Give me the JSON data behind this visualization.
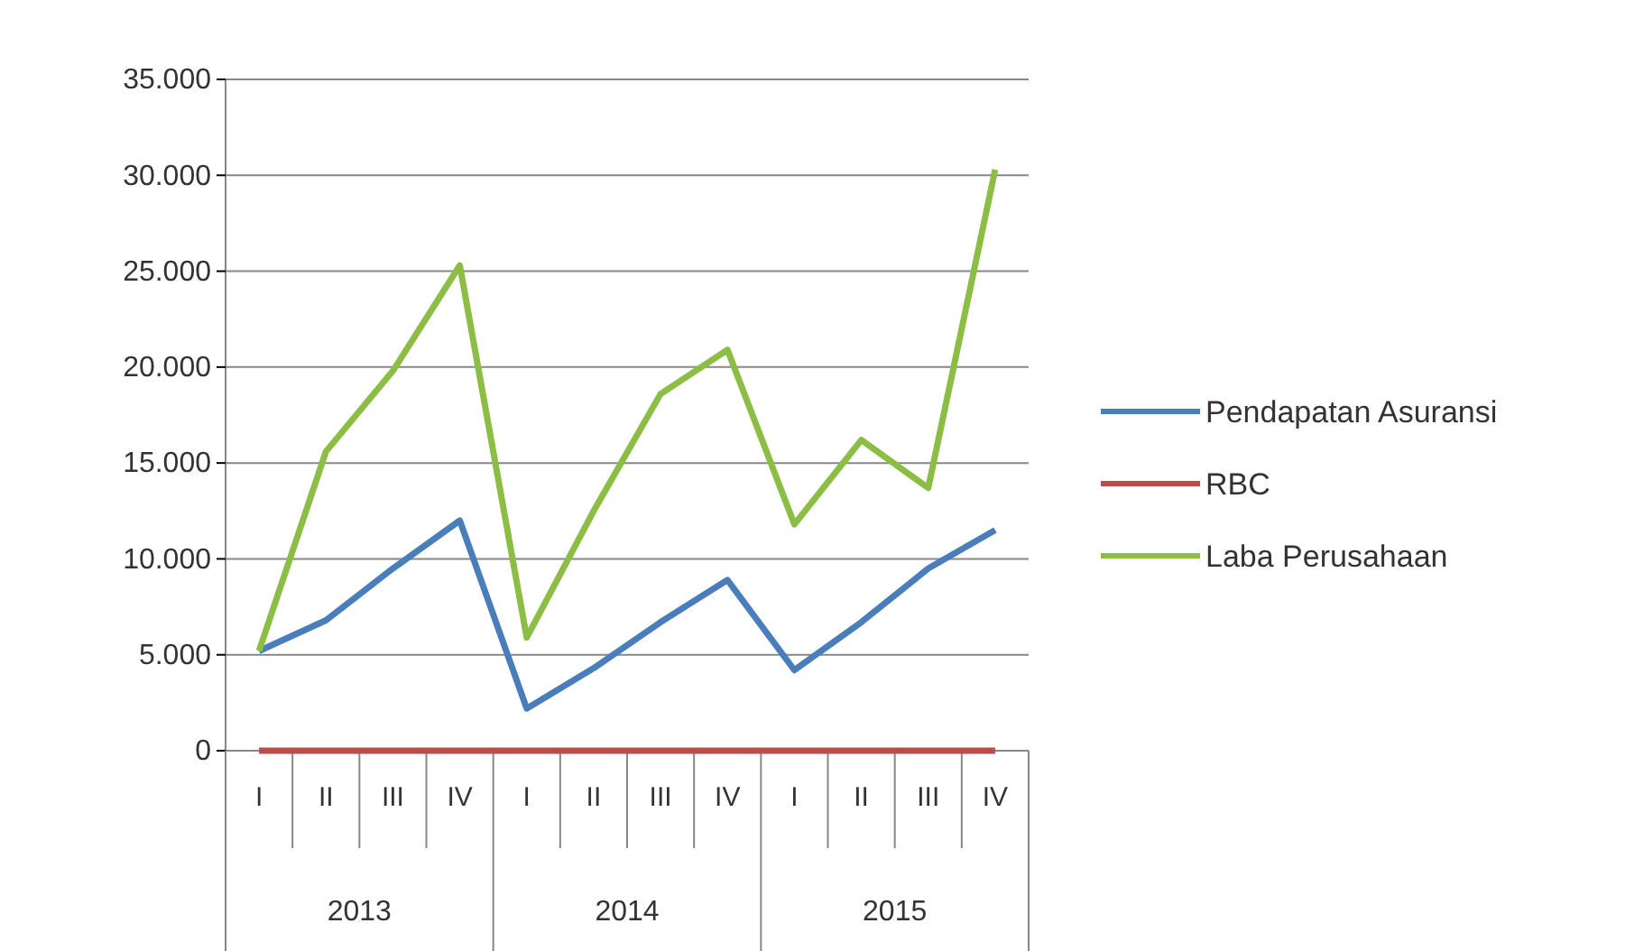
{
  "chart_data": {
    "type": "line",
    "categories": [
      "I",
      "II",
      "III",
      "IV",
      "I",
      "II",
      "III",
      "IV",
      "I",
      "II",
      "III",
      "IV"
    ],
    "series": [
      {
        "name": "Pendapatan Asuransi",
        "color": "#4a7ebb",
        "values": [
          5200,
          6800,
          9500,
          12000,
          2200,
          4300,
          6700,
          8900,
          4200,
          6700,
          9500,
          11500
        ]
      },
      {
        "name": "RBC",
        "color": "#be4b48",
        "values": [
          0,
          0,
          0,
          0,
          0,
          0,
          0,
          0,
          0,
          0,
          0,
          0
        ]
      },
      {
        "name": "Laba Perusahaan",
        "color": "#8cbd44",
        "values": [
          5200,
          15600,
          19800,
          25300,
          5900,
          12500,
          18600,
          20900,
          11800,
          16200,
          13700,
          30300
        ]
      }
    ],
    "ylim": [
      0,
      35000
    ],
    "yticks": [
      0,
      {
        "value": 5000,
        "label": "5.000"
      },
      {
        "value": 10000,
        "label": "10.000"
      },
      {
        "value": 15000,
        "label": "15.000"
      },
      {
        "value": 20000,
        "label": "20.000"
      },
      {
        "value": 25000,
        "label": "25.000"
      },
      {
        "value": 30000,
        "label": "30.000"
      },
      {
        "value": 35000,
        "label": "35.000"
      }
    ],
    "annotations": [
      "2013",
      "2014",
      "2015"
    ],
    "grid": "y",
    "legend": "right",
    "marker": "none",
    "line_style": "solid"
  }
}
